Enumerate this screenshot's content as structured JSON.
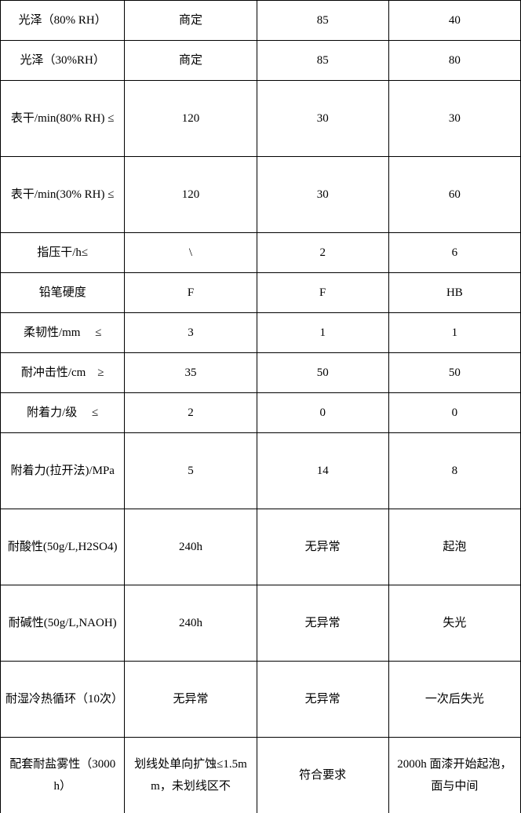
{
  "table": {
    "columns_pct": [
      25,
      25,
      25,
      25
    ],
    "border_color": "#000000",
    "background_color": "#ffffff",
    "text_color": "#000000",
    "font_family": "SimSun",
    "font_size_pt": 11,
    "rows": [
      {
        "label": "光泽（80% RH）",
        "c1": "商定",
        "c2": "85",
        "c3": "40",
        "height": "short"
      },
      {
        "label": "光泽（30%RH）",
        "c1": "商定",
        "c2": "85",
        "c3": "80",
        "height": "short"
      },
      {
        "label": "表干/min(80% RH) ≤",
        "c1": "120",
        "c2": "30",
        "c3": "30",
        "height": "tall"
      },
      {
        "label": "表干/min(30% RH) ≤",
        "c1": "120",
        "c2": "30",
        "c3": "60",
        "height": "tall"
      },
      {
        "label": "指压干/h≤",
        "c1": "\\",
        "c2": "2",
        "c3": "6",
        "height": "short"
      },
      {
        "label": "铅笔硬度",
        "c1": "F",
        "c2": "F",
        "c3": "HB",
        "height": "short"
      },
      {
        "label": "柔韧性/mm　 ≤",
        "c1": "3",
        "c2": "1",
        "c3": "1",
        "height": "short"
      },
      {
        "label": "耐冲击性/cm　≥",
        "c1": "35",
        "c2": "50",
        "c3": "50",
        "height": "short"
      },
      {
        "label": "附着力/级　 ≤",
        "c1": "2",
        "c2": "0",
        "c3": "0",
        "height": "short"
      },
      {
        "label": "附着力(拉开法)/MPa",
        "c1": "5",
        "c2": "14",
        "c3": "8",
        "height": "tall"
      },
      {
        "label": "耐酸性(50g/L,H2SO4)",
        "c1": "240h",
        "c2": "无异常",
        "c3": "起泡",
        "height": "tall"
      },
      {
        "label": "耐碱性(50g/L,NAOH)",
        "c1": "240h",
        "c2": "无异常",
        "c3": "失光",
        "height": "tall"
      },
      {
        "label": "耐湿冷热循环（10次）",
        "c1": "无异常",
        "c2": "无异常",
        "c3": "一次后失光",
        "height": "tall"
      },
      {
        "label": "配套耐盐雾性（3000h）",
        "c1": "划线处单向扩蚀≤1.5mm，未划线区不",
        "c2": "符合要求",
        "c3": "2000h 面漆开始起泡，面与中间",
        "height": "tall",
        "last": true
      }
    ]
  }
}
